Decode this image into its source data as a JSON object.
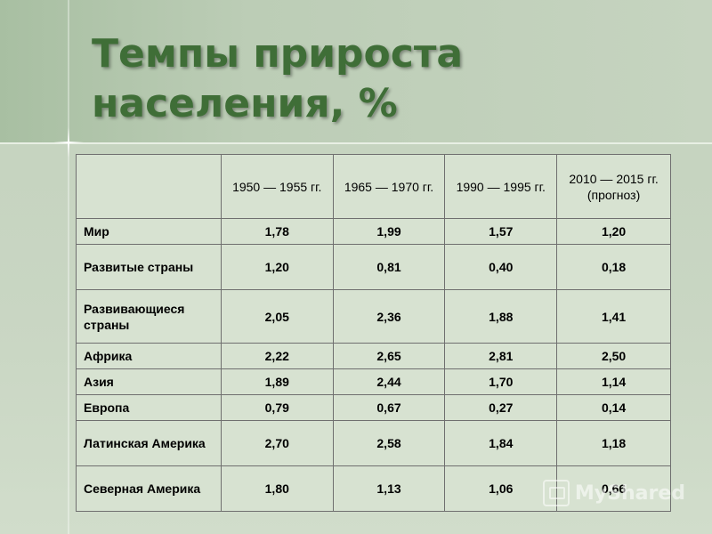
{
  "title": {
    "line1": "Темпы прироста",
    "line2": "населения, %"
  },
  "table": {
    "headers": [
      "",
      "1950 — 1955 гг.",
      "1965 — 1970 гг.",
      "1990 — 1995 гг.",
      "2010 — 2015 гг. (прогноз)"
    ],
    "rows": [
      {
        "label": "Мир",
        "values": [
          "1,78",
          "1,99",
          "1,57",
          "1,20"
        ]
      },
      {
        "label": "Развитые страны",
        "values": [
          "1,20",
          "0,81",
          "0,40",
          "0,18"
        ]
      },
      {
        "label": "Развивающиеся страны",
        "values": [
          "2,05",
          "2,36",
          "1,88",
          "1,41"
        ]
      },
      {
        "label": "Африка",
        "values": [
          "2,22",
          "2,65",
          "2,81",
          "2,50"
        ]
      },
      {
        "label": "Азия",
        "values": [
          "1,89",
          "2,44",
          "1,70",
          "1,14"
        ]
      },
      {
        "label": "Европа",
        "values": [
          "0,79",
          "0,67",
          "0,27",
          "0,14"
        ]
      },
      {
        "label": "Латинская Америка",
        "values": [
          "2,70",
          "2,58",
          "1,84",
          "1,18"
        ]
      },
      {
        "label": "Северная Америка",
        "values": [
          "1,80",
          "1,13",
          "1,06",
          "0,66"
        ]
      }
    ]
  },
  "watermark": {
    "text": "MyShared",
    "icon": "presentation-icon"
  },
  "colors": {
    "title": "#3f6e37",
    "background": "#c6d4c0",
    "table_fill": "#d7e2d1",
    "border": "#6f6f6f"
  }
}
